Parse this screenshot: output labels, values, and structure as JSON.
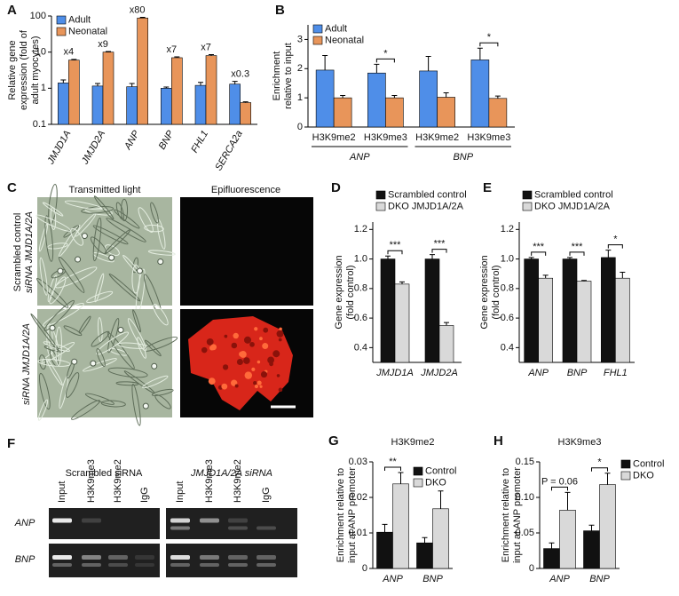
{
  "chart_data": [
    {
      "panel": "A",
      "type": "bar",
      "log_y": true,
      "ylabel": [
        "Relative gene",
        "expression (fold of",
        "adult myocytes)"
      ],
      "categories": [
        "JMJD1A",
        "JMJD2A",
        "ANP",
        "BNP",
        "FHL1",
        "SERCA2a"
      ],
      "series": [
        {
          "name": "Adult",
          "color": "#4f8ee8",
          "values": [
            1.4,
            1.15,
            1.1,
            1.0,
            1.2,
            1.3
          ],
          "errors": [
            0.3,
            0.2,
            0.25,
            0.08,
            0.25,
            0.25
          ]
        },
        {
          "name": "Neonatal",
          "color": "#e8955a",
          "values": [
            6,
            10,
            88,
            7,
            8,
            0.4
          ],
          "errors": [
            0.3,
            0.4,
            4,
            0.4,
            0.5,
            0.02
          ]
        }
      ],
      "fold_labels": [
        "x4",
        "x9",
        "x80",
        "x7",
        "x7",
        "x0.3"
      ],
      "ylim": [
        0.1,
        100
      ],
      "yticks": [
        0.1,
        1,
        10,
        100
      ],
      "legend": "upper left"
    },
    {
      "panel": "B",
      "type": "bar",
      "ylabel": [
        "Enrichment",
        "relative to input"
      ],
      "categories": [
        "H3K9me2",
        "H3K9me3",
        "H3K9me2",
        "H3K9me3"
      ],
      "groups": [
        "ANP",
        "BNP"
      ],
      "series": [
        {
          "name": "Adult",
          "color": "#4f8ee8",
          "values": [
            1.95,
            1.85,
            1.92,
            2.3
          ],
          "errors": [
            0.5,
            0.3,
            0.5,
            0.4
          ]
        },
        {
          "name": "Neonatal",
          "color": "#e8955a",
          "values": [
            1.0,
            1.0,
            1.02,
            0.98
          ],
          "errors": [
            0.08,
            0.08,
            0.15,
            0.08
          ]
        }
      ],
      "significance": [
        null,
        "*",
        null,
        "*"
      ],
      "ylim": [
        0,
        3.5
      ],
      "yticks": [
        0,
        1,
        2,
        3
      ],
      "legend": "upper left"
    },
    {
      "panel": "D",
      "type": "bar",
      "ylabel": [
        "Gene expression",
        "(fold control)"
      ],
      "categories": [
        "JMJD1A",
        "JMJD2A"
      ],
      "series": [
        {
          "name": "Scrambled control",
          "color": "#111111",
          "values": [
            1.0,
            1.0
          ],
          "errors": [
            0.02,
            0.03
          ]
        },
        {
          "name": "DKO JMJD1A/2A",
          "color": "#d9d9d9",
          "values": [
            0.83,
            0.55
          ],
          "errors": [
            0.015,
            0.02
          ]
        }
      ],
      "significance": [
        "***",
        "***"
      ],
      "ylim": [
        0.3,
        1.25
      ],
      "yticks": [
        0.4,
        0.6,
        0.8,
        {
          "value": 1.0,
          "label": "1.0"
        },
        1.2
      ],
      "legend": "top"
    },
    {
      "panel": "E",
      "type": "bar",
      "ylabel": [
        "Gene expression",
        "(fold control)"
      ],
      "categories": [
        "ANP",
        "BNP",
        "FHL1"
      ],
      "series": [
        {
          "name": "Scrambled control",
          "color": "#111111",
          "values": [
            1.0,
            1.0,
            1.01
          ],
          "errors": [
            0.01,
            0.01,
            0.05
          ]
        },
        {
          "name": "DKO JMJD1A/2A",
          "color": "#d9d9d9",
          "values": [
            0.87,
            0.85,
            0.87
          ],
          "errors": [
            0.02,
            0.005,
            0.04
          ]
        }
      ],
      "significance": [
        "***",
        "***",
        "*"
      ],
      "ylim": [
        0.3,
        1.25
      ],
      "yticks": [
        0.4,
        0.6,
        0.8,
        {
          "value": 1.0,
          "label": "1.0"
        },
        1.2
      ],
      "legend": "top"
    },
    {
      "panel": "G",
      "type": "bar",
      "title": "H3K9me2",
      "ylabel": [
        "Enrichment relative to",
        "input at ANP promoter"
      ],
      "categories": [
        "ANP",
        "BNP"
      ],
      "series": [
        {
          "name": "Control",
          "color": "#111111",
          "values": [
            0.0102,
            0.0072
          ],
          "errors": [
            0.0022,
            0.0015
          ]
        },
        {
          "name": "DKO",
          "color": "#d9d9d9",
          "values": [
            0.0238,
            0.0168
          ],
          "errors": [
            0.0032,
            0.005
          ]
        }
      ],
      "significance": [
        "**",
        null
      ],
      "ylim": [
        0,
        0.03
      ],
      "yticks": [
        0,
        0.01,
        0.02,
        0.03
      ],
      "legend": "upper right"
    },
    {
      "panel": "H",
      "type": "bar",
      "title": "H3K9me3",
      "ylabel": [
        "Enrichment relative to",
        "input at ANP promoter"
      ],
      "categories": [
        "ANP",
        "BNP"
      ],
      "series": [
        {
          "name": "Control",
          "color": "#111111",
          "values": [
            0.028,
            0.053
          ],
          "errors": [
            0.008,
            0.008
          ]
        },
        {
          "name": "DKO",
          "color": "#d9d9d9",
          "values": [
            0.082,
            0.118
          ],
          "errors": [
            0.025,
            0.016
          ]
        }
      ],
      "significance": [
        "P = 0.06",
        "*"
      ],
      "ylim": [
        0,
        0.15
      ],
      "yticks": [
        0,
        0.05,
        {
          "value": 0.1,
          "label": "0.10"
        },
        0.15
      ],
      "legend": "right"
    }
  ],
  "panel_c": {
    "letter": "C",
    "columns": [
      "Transmitted light",
      "Epifluorescence"
    ],
    "rows": [
      [
        "Scrambled control",
        "siRNA JMJD1A/2A"
      ],
      [
        "siRNA JMJD1A/2A"
      ]
    ]
  },
  "panel_f": {
    "letter": "F",
    "groups": [
      "Scrambled siRNA",
      "JMJD1A/2A siRNA"
    ],
    "lanes": [
      [
        "Input",
        "H3K9me3",
        "H3K9me2",
        "IgG"
      ],
      [
        "Input",
        "H3K9me3",
        "H3K9me2",
        "IgG"
      ]
    ],
    "rows": [
      "ANP",
      "BNP"
    ]
  }
}
